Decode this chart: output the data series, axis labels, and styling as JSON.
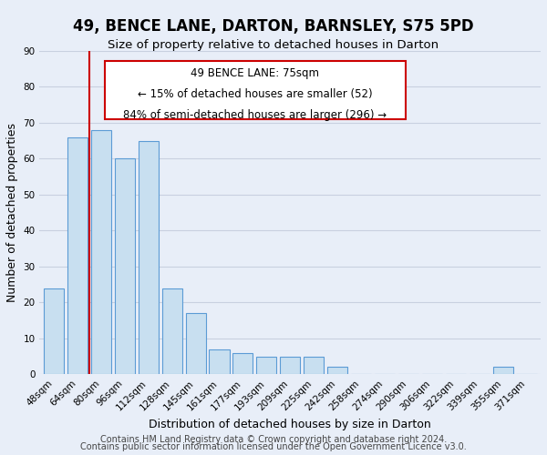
{
  "title": "49, BENCE LANE, DARTON, BARNSLEY, S75 5PD",
  "subtitle": "Size of property relative to detached houses in Darton",
  "xlabel": "Distribution of detached houses by size in Darton",
  "ylabel": "Number of detached properties",
  "bar_labels": [
    "48sqm",
    "64sqm",
    "80sqm",
    "96sqm",
    "112sqm",
    "128sqm",
    "145sqm",
    "161sqm",
    "177sqm",
    "193sqm",
    "209sqm",
    "225sqm",
    "242sqm",
    "258sqm",
    "274sqm",
    "290sqm",
    "306sqm",
    "322sqm",
    "339sqm",
    "355sqm",
    "371sqm"
  ],
  "bar_heights": [
    24,
    66,
    68,
    60,
    65,
    24,
    17,
    7,
    6,
    5,
    5,
    5,
    2,
    0,
    0,
    0,
    0,
    0,
    0,
    2,
    0
  ],
  "bar_color": "#c8dff0",
  "bar_edge_color": "#5b9bd5",
  "vline_x": 1.5,
  "vline_color": "#cc0000",
  "ylim": [
    0,
    90
  ],
  "yticks": [
    0,
    10,
    20,
    30,
    40,
    50,
    60,
    70,
    80,
    90
  ],
  "background_color": "#e8eef8",
  "grid_color": "#c8d0e0",
  "title_fontsize": 12,
  "subtitle_fontsize": 9.5,
  "axis_label_fontsize": 9,
  "tick_fontsize": 7.5,
  "footer_fontsize": 7,
  "footer_line1": "Contains HM Land Registry data © Crown copyright and database right 2024.",
  "footer_line2": "Contains public sector information licensed under the Open Government Licence v3.0.",
  "ann_line1": "49 BENCE LANE: 75sqm",
  "ann_line2": "← 15% of detached houses are smaller (52)",
  "ann_line3": "84% of semi-detached houses are larger (296) →"
}
